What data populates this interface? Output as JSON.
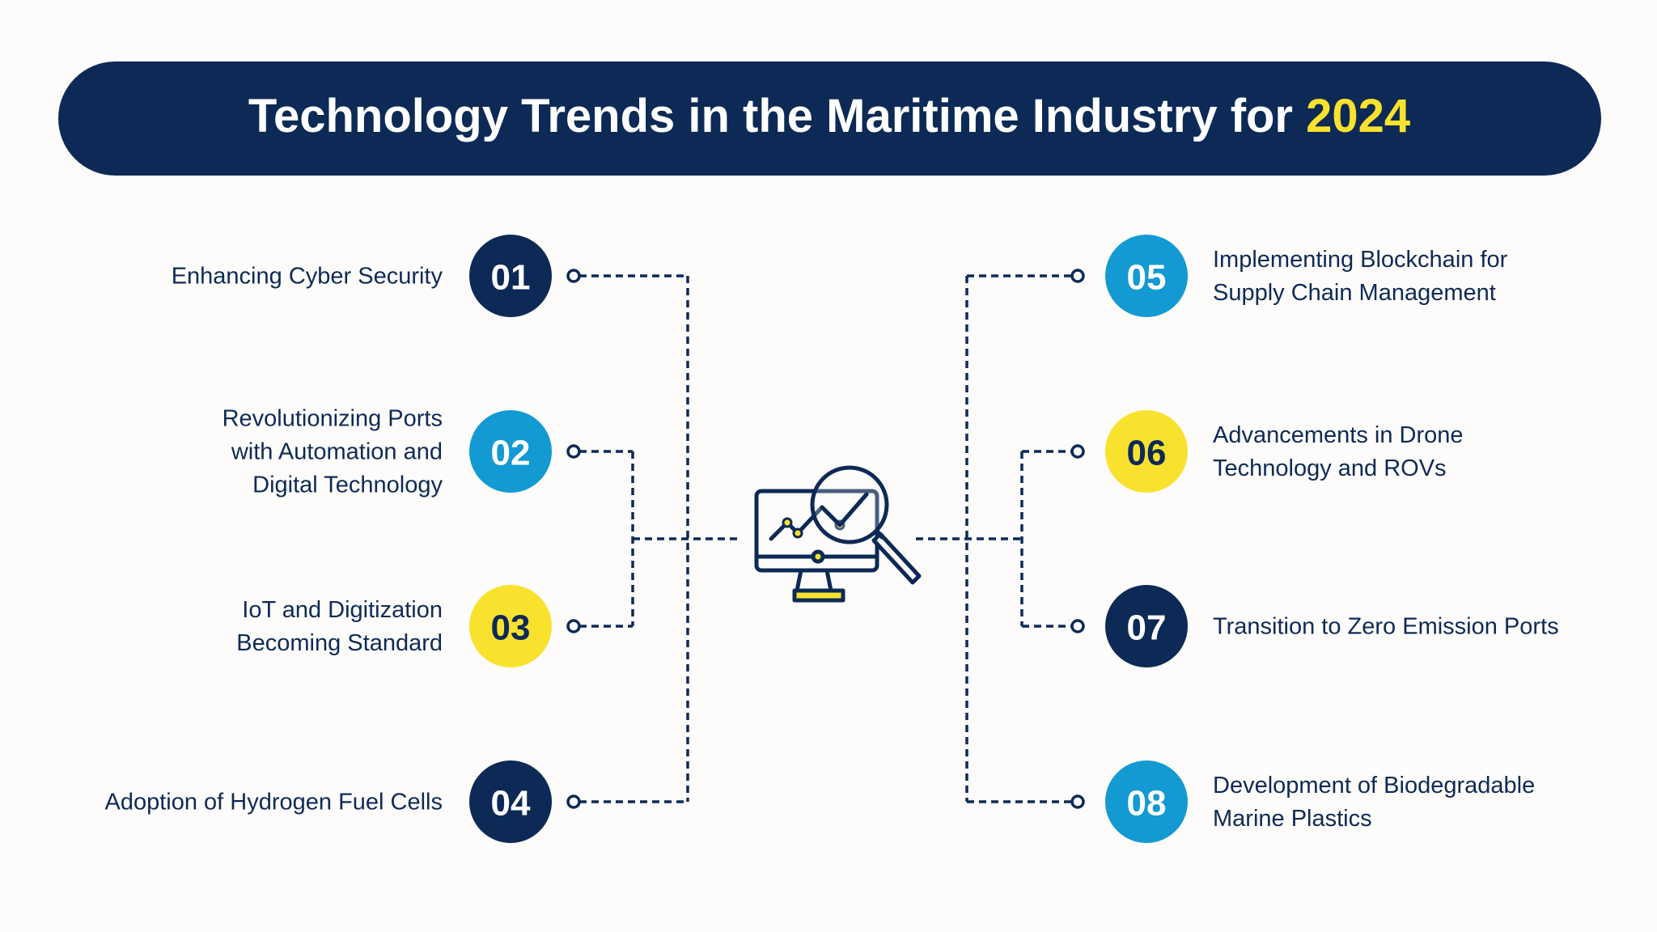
{
  "title": {
    "text": "Technology Trends in the Maritime Industry for",
    "highlight": "2024"
  },
  "items": [
    {
      "number": "01",
      "color": "#0d2a56",
      "label": [
        "Enhancing Cyber Security"
      ]
    },
    {
      "number": "02",
      "color": "#139ad2",
      "label": [
        "Revolutionizing Ports",
        "with Automation and",
        "Digital Technology"
      ]
    },
    {
      "number": "03",
      "color": "#f9e22e",
      "label": [
        "IoT and Digitization",
        "Becoming Standard"
      ]
    },
    {
      "number": "04",
      "color": "#0d2a56",
      "label": [
        "Adoption of Hydrogen Fuel Cells"
      ]
    },
    {
      "number": "05",
      "color": "#139ad2",
      "label": [
        "Implementing Blockchain for",
        "Supply Chain Management"
      ]
    },
    {
      "number": "06",
      "color": "#f9e22e",
      "label": [
        "Advancements in Drone",
        "Technology and ROVs"
      ]
    },
    {
      "number": "07",
      "color": "#0d2a56",
      "label": [
        "Transition to Zero Emission Ports"
      ]
    },
    {
      "number": "08",
      "color": "#139ad2",
      "label": [
        "Development of Biodegradable",
        "Marine Plastics"
      ]
    }
  ]
}
